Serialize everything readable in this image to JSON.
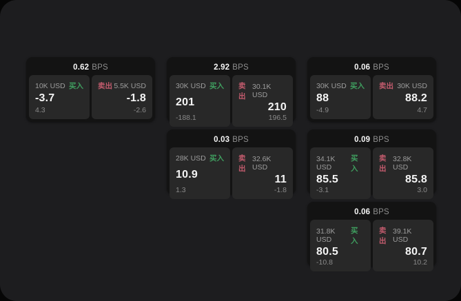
{
  "labels": {
    "buy": "买入",
    "sell": "卖出",
    "unit": "BPS"
  },
  "colors": {
    "canvas_bg": "#1d1d1f",
    "card_bg": "#131313",
    "panel_bg": "#282828",
    "buy_green": "#3f9e5f",
    "sell_red": "#c25b6d"
  },
  "cards": [
    {
      "bps": "0.62",
      "buy": {
        "amount": "10K USD",
        "value": "-3.7",
        "change": "4.3"
      },
      "sell": {
        "amount": "5.5K USD",
        "value": "-1.8",
        "change": "-2.6"
      }
    },
    {
      "bps": "2.92",
      "buy": {
        "amount": "30K USD",
        "value": "201",
        "change": "-188.1"
      },
      "sell": {
        "amount": "30.1K USD",
        "value": "210",
        "change": "196.5"
      }
    },
    {
      "bps": "0.06",
      "buy": {
        "amount": "30K USD",
        "value": "88",
        "change": "-4.9"
      },
      "sell": {
        "amount": "30K USD",
        "value": "88.2",
        "change": "4.7"
      }
    },
    {
      "bps": "0.03",
      "buy": {
        "amount": "28K USD",
        "value": "10.9",
        "change": "1.3"
      },
      "sell": {
        "amount": "32.6K USD",
        "value": "11",
        "change": "-1.8"
      }
    },
    {
      "bps": "0.09",
      "buy": {
        "amount": "34.1K USD",
        "value": "85.5",
        "change": "-3.1"
      },
      "sell": {
        "amount": "32.8K USD",
        "value": "85.8",
        "change": "3.0"
      }
    },
    {
      "bps": "0.06",
      "buy": {
        "amount": "31.8K USD",
        "value": "80.5",
        "change": "-10.8"
      },
      "sell": {
        "amount": "39.1K USD",
        "value": "80.7",
        "change": "10.2"
      }
    }
  ]
}
